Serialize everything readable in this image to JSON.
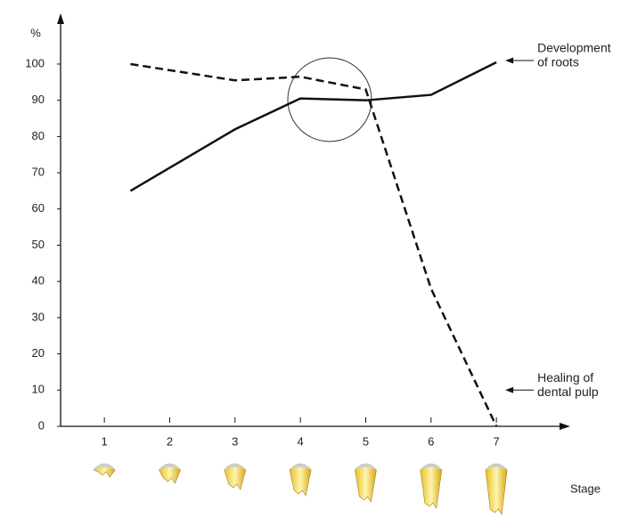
{
  "chart_data": {
    "type": "line",
    "y_label": "%",
    "x_label": "Stage",
    "x": [
      1.4,
      3,
      4,
      5,
      6,
      7
    ],
    "series": [
      {
        "label_lines": [
          "Development",
          "of roots"
        ],
        "color": "#111111",
        "dashed": false,
        "values": [
          65,
          82,
          90.5,
          90,
          91.5,
          100.5
        ]
      },
      {
        "label_lines": [
          "Healing of",
          "dental pulp"
        ],
        "color": "#111111",
        "dashed": true,
        "values": [
          100,
          95.5,
          96.5,
          93,
          38,
          0
        ]
      }
    ],
    "xlim": [
      0.33,
      8.13
    ],
    "xticks": [
      1,
      2,
      3,
      4,
      5,
      6,
      7
    ],
    "ylim": [
      0,
      114
    ],
    "yticks": [
      0,
      10,
      20,
      30,
      40,
      50,
      60,
      70,
      80,
      90,
      100
    ],
    "grid": false
  }
}
